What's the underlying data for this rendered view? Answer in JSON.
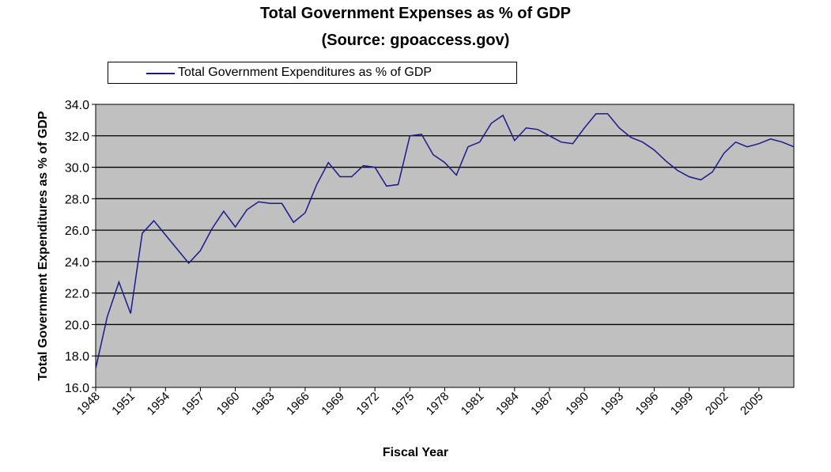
{
  "chart_data": {
    "type": "line",
    "title": "Total Government Expenses as % of GDP",
    "subtitle": "(Source: gpoaccess.gov)",
    "xlabel": "Fiscal Year",
    "ylabel": "Total Government Expenditures as % of GDP",
    "ylim": [
      16.0,
      34.0
    ],
    "yticks": [
      "16.0",
      "18.0",
      "20.0",
      "22.0",
      "24.0",
      "26.0",
      "28.0",
      "30.0",
      "32.0",
      "34.0"
    ],
    "xticks": [
      "1948",
      "1951",
      "1954",
      "1957",
      "1960",
      "1963",
      "1966",
      "1969",
      "1972",
      "1975",
      "1978",
      "1981",
      "1984",
      "1987",
      "1990",
      "1993",
      "1996",
      "1999",
      "2002",
      "2005"
    ],
    "grid": true,
    "legend_position": "top-left",
    "series": [
      {
        "name": "Total Government Expenditures as % of GDP",
        "color": "#1a1a8c",
        "x": [
          1948,
          1949,
          1950,
          1951,
          1952,
          1953,
          1954,
          1955,
          1956,
          1957,
          1958,
          1959,
          1960,
          1961,
          1962,
          1963,
          1964,
          1965,
          1966,
          1967,
          1968,
          1969,
          1970,
          1971,
          1972,
          1973,
          1974,
          1975,
          1976,
          1977,
          1978,
          1979,
          1980,
          1981,
          1982,
          1983,
          1984,
          1985,
          1986,
          1987,
          1988,
          1989,
          1990,
          1991,
          1992,
          1993,
          1994,
          1995,
          1996,
          1997,
          1998,
          1999,
          2000,
          2001,
          2002,
          2003,
          2004,
          2005,
          2006,
          2007,
          2008
        ],
        "values": [
          17.2,
          20.5,
          22.7,
          20.7,
          25.8,
          26.6,
          25.7,
          24.8,
          23.9,
          24.7,
          26.1,
          27.2,
          26.2,
          27.3,
          27.8,
          27.7,
          27.7,
          26.5,
          27.1,
          28.9,
          30.3,
          29.4,
          29.4,
          30.1,
          30.0,
          28.8,
          28.9,
          32.0,
          32.1,
          30.8,
          30.3,
          29.5,
          31.3,
          31.6,
          32.8,
          33.3,
          31.7,
          32.5,
          32.4,
          32.0,
          31.6,
          31.5,
          32.5,
          33.4,
          33.4,
          32.5,
          31.9,
          31.6,
          31.1,
          30.4,
          29.8,
          29.4,
          29.2,
          29.7,
          30.9,
          31.6,
          31.3,
          31.5,
          31.8,
          31.6,
          31.3
        ]
      }
    ]
  },
  "legend": {
    "label": "Total Government Expenditures as % of GDP"
  },
  "colors": {
    "plot_bg": "#c0c0c0",
    "line": "#1a1a8c",
    "grid": "#000000"
  }
}
